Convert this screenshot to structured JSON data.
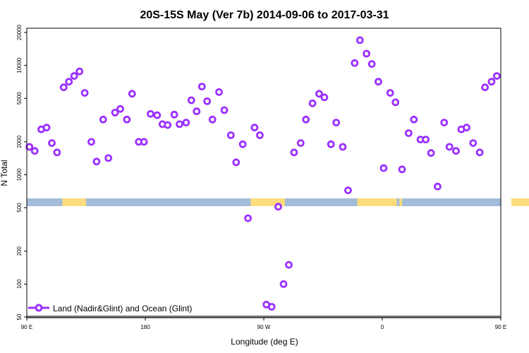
{
  "chart_data": {
    "type": "scatter",
    "title": "20S-15S May (Ver 7b)   2014-09-06 to 2017-03-31",
    "xlabel": "Longitude (deg E)",
    "ylabel": "N Total",
    "xlim": [
      90,
      450
    ],
    "ylim": [
      50,
      25000
    ],
    "y_scale": "log",
    "grid": false,
    "legend_position": "bottom-left",
    "x_ticks": [
      {
        "value": 90,
        "label": "90 E"
      },
      {
        "value": 180,
        "label": "180"
      },
      {
        "value": 270,
        "label": "90 W"
      },
      {
        "value": 360,
        "label": "0"
      },
      {
        "value": 450,
        "label": "90 E"
      },
      {
        "value": 540,
        "label": "180"
      }
    ],
    "y_ticks": [
      {
        "value": 50,
        "label": "50"
      },
      {
        "value": 100,
        "label": "100"
      },
      {
        "value": 200,
        "label": "200"
      },
      {
        "value": 500,
        "label": "500"
      },
      {
        "value": 1000,
        "label": "1000"
      },
      {
        "value": 2000,
        "label": "2000"
      },
      {
        "value": 5000,
        "label": "5000"
      },
      {
        "value": 10000,
        "label": "10000"
      },
      {
        "value": 20000,
        "label": "20000"
      }
    ],
    "series": [
      {
        "name": "Land (Nadir&Glint) and Ocean (Glint)",
        "color": "#9b30ff",
        "points": [
          [
            92,
            1800
          ],
          [
            96,
            1650
          ],
          [
            101,
            2600
          ],
          [
            105,
            2700
          ],
          [
            109,
            1950
          ],
          [
            113,
            1600
          ],
          [
            118,
            6300
          ],
          [
            122,
            7100
          ],
          [
            126,
            8000
          ],
          [
            130,
            8800
          ],
          [
            134,
            5600
          ],
          [
            139,
            2000
          ],
          [
            143,
            1320
          ],
          [
            148,
            3200
          ],
          [
            152,
            1420
          ],
          [
            157,
            3700
          ],
          [
            161,
            4000
          ],
          [
            166,
            3200
          ],
          [
            170,
            5500
          ],
          [
            175,
            2000
          ],
          [
            179,
            2000
          ],
          [
            184,
            3600
          ],
          [
            189,
            3500
          ],
          [
            193,
            2900
          ],
          [
            197,
            2850
          ],
          [
            202,
            3550
          ],
          [
            206,
            2900
          ],
          [
            211,
            3000
          ],
          [
            215,
            4800
          ],
          [
            219,
            3800
          ],
          [
            223,
            6400
          ],
          [
            227,
            4700
          ],
          [
            231,
            3200
          ],
          [
            236,
            5700
          ],
          [
            240,
            3900
          ],
          [
            245,
            2300
          ],
          [
            249,
            1300
          ],
          [
            254,
            1900
          ],
          [
            258,
            400
          ],
          [
            263,
            2700
          ],
          [
            267,
            2300
          ],
          [
            272,
            65
          ],
          [
            276,
            62
          ],
          [
            281,
            510
          ],
          [
            285,
            100
          ],
          [
            289,
            150
          ],
          [
            293,
            1600
          ],
          [
            298,
            1950
          ],
          [
            302,
            3200
          ],
          [
            307,
            4500
          ],
          [
            312,
            5500
          ],
          [
            316,
            5100
          ],
          [
            321,
            1900
          ],
          [
            325,
            3000
          ],
          [
            330,
            1800
          ],
          [
            334,
            720
          ],
          [
            339,
            10500
          ],
          [
            343,
            17000
          ],
          [
            348,
            12800
          ],
          [
            352,
            10300
          ],
          [
            357,
            7100
          ],
          [
            361,
            1150
          ],
          [
            366,
            5600
          ],
          [
            370,
            4600
          ],
          [
            375,
            1120
          ],
          [
            380,
            2400
          ],
          [
            384,
            3200
          ],
          [
            389,
            2100
          ],
          [
            393,
            2100
          ],
          [
            397,
            1580
          ],
          [
            402,
            780
          ],
          [
            407,
            3000
          ],
          [
            411,
            1800
          ],
          [
            416,
            1650
          ],
          [
            420,
            2600
          ],
          [
            424,
            2700
          ],
          [
            429,
            1950
          ],
          [
            434,
            1600
          ],
          [
            438,
            6300
          ],
          [
            443,
            7100
          ],
          [
            447,
            8000
          ],
          [
            452,
            8800
          ]
        ]
      }
    ],
    "bottom_strip": {
      "ocean_color": "#a3bcd9",
      "land_color": "#fddc7e",
      "land_segments": [
        [
          117,
          135
        ],
        [
          260,
          286
        ],
        [
          341,
          371
        ],
        [
          373,
          375
        ],
        [
          458,
          475
        ]
      ]
    }
  },
  "legend": {
    "label": "Land (Nadir&Glint) and Ocean (Glint)"
  }
}
